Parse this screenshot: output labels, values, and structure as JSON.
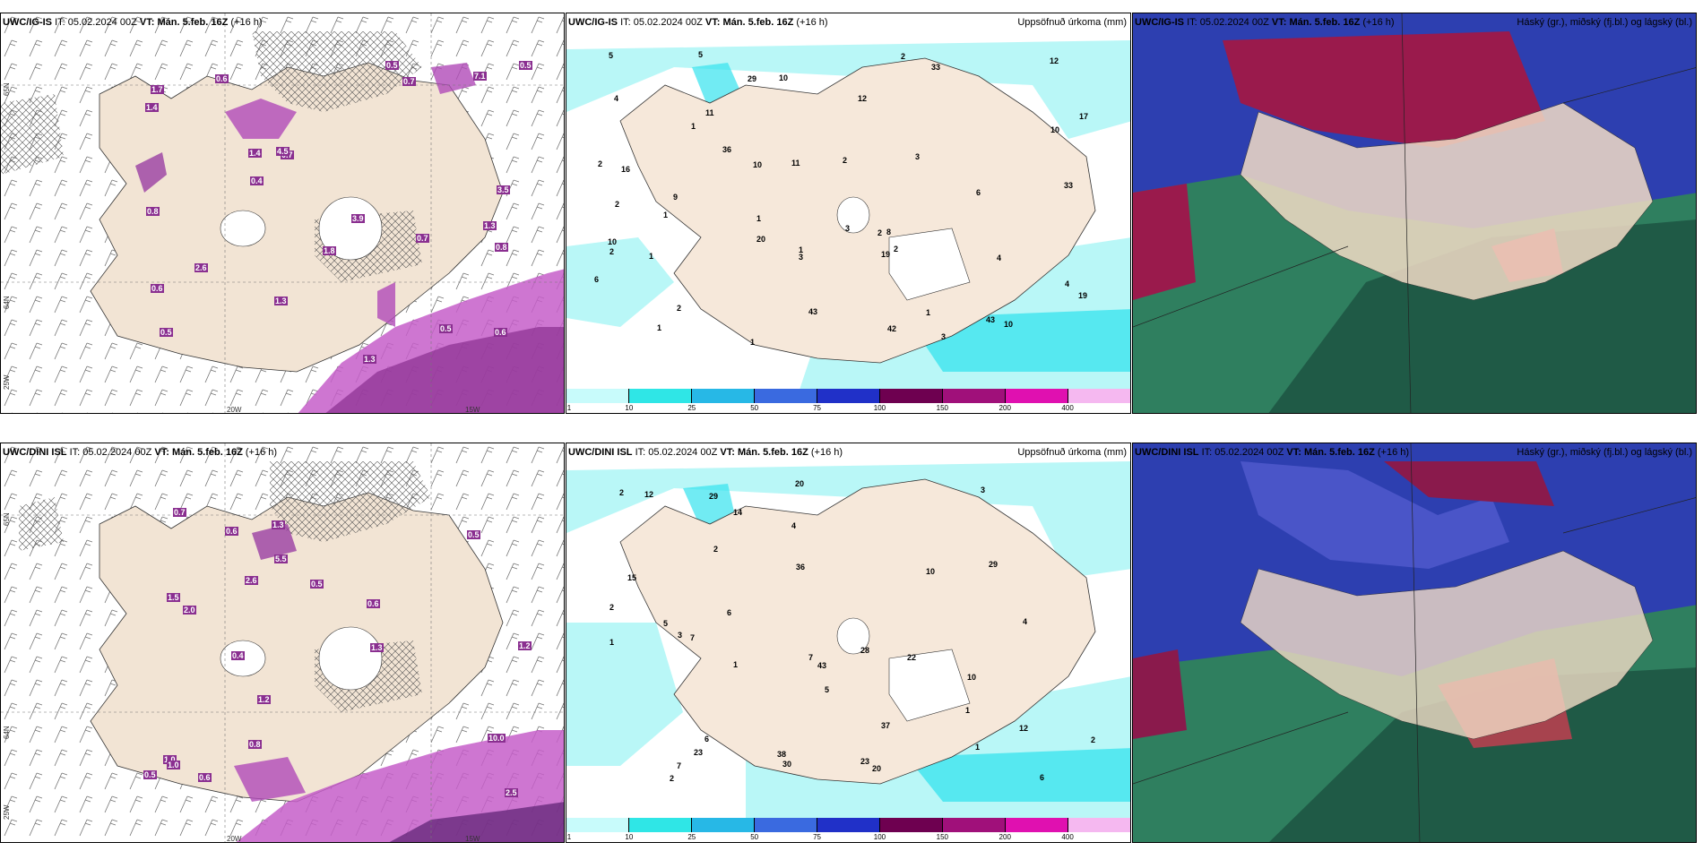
{
  "panels": [
    {
      "id": "top-left",
      "model": "UWC/IG-IS",
      "it_label": "IT:",
      "it_value": "05.02.2024 00Z",
      "vt_label": "VT:",
      "vt_value": "Mán. 5.feb. 16Z",
      "lead": "(+16 h)",
      "right_title": "",
      "coords": [
        "20W",
        "15W",
        "65N",
        "64N",
        "25W"
      ],
      "values": [
        "0.7",
        "1.3",
        "0.5",
        "0.6",
        "0.7",
        "0.5",
        "0.6",
        "0.7",
        "1.4",
        "1.3",
        "1.4",
        "0.8",
        "1.7",
        "0.6",
        "1.3",
        "3.5",
        "1.8",
        "3.9",
        "4.5",
        "2.6",
        "0.5",
        "7.1",
        "0.4",
        "0.8",
        "0.5"
      ]
    },
    {
      "id": "top-middle",
      "model": "UWC/IG-IS",
      "it_label": "IT:",
      "it_value": "05.02.2024 00Z",
      "vt_label": "VT:",
      "vt_value": "Mán. 5.feb. 16Z",
      "lead": "(+16 h)",
      "right_title": "Uppsöfnuð úrkoma (mm)",
      "values": [
        "2",
        "16",
        "12",
        "19",
        "1",
        "11",
        "6",
        "8",
        "10",
        "2",
        "2",
        "2",
        "1",
        "1",
        "4",
        "4",
        "3",
        "2",
        "1",
        "1",
        "10",
        "2",
        "3",
        "1",
        "5",
        "2",
        "1",
        "2",
        "1",
        "19",
        "33",
        "20",
        "10",
        "4",
        "3",
        "5",
        "3",
        "6",
        "10",
        "11",
        "9",
        "12",
        "17",
        "29",
        "33",
        "36",
        "43",
        "42",
        "43",
        "10"
      ]
    },
    {
      "id": "top-right",
      "model": "UWC/IG-IS",
      "it_label": "IT:",
      "it_value": "05.02.2024 00Z",
      "vt_label": "VT:",
      "vt_value": "Mán. 5.feb. 16Z",
      "lead": "(+16 h)",
      "right_title": "Háský (gr.), miðský (fj.bl.) og lágský (bl.)"
    },
    {
      "id": "bottom-left",
      "model": "UWC/DINI ISL",
      "it_label": "IT:",
      "it_value": "05.02.2024 00Z",
      "vt_label": "VT:",
      "vt_value": "Mán. 5.feb. 16Z",
      "lead": "(+16 h)",
      "right_title": "",
      "coords": [
        "20W",
        "15W",
        "65N",
        "64N",
        "25W"
      ],
      "values": [
        "0.8",
        "1.3",
        "0.5",
        "0.6",
        "0.7",
        "0.6",
        "0.5",
        "1.2",
        "0.4",
        "0.6",
        "2.6",
        "0.5",
        "1.0",
        "5.5",
        "1.3",
        "1.2",
        "10.0",
        "2.5",
        "1.5",
        "2.0",
        "1.0"
      ]
    },
    {
      "id": "bottom-middle",
      "model": "UWC/DINI ISL",
      "it_label": "IT:",
      "it_value": "05.02.2024 00Z",
      "vt_label": "VT:",
      "vt_value": "Mán. 5.feb. 16Z",
      "lead": "(+16 h)",
      "right_title": "Uppsöfnuð úrkoma (mm)",
      "values": [
        "23",
        "20",
        "6",
        "28",
        "15",
        "6",
        "10",
        "2",
        "1",
        "3",
        "20",
        "3",
        "5",
        "6",
        "2",
        "2",
        "1",
        "4",
        "2",
        "7",
        "7",
        "10",
        "22",
        "1",
        "2",
        "1",
        "7",
        "4",
        "12",
        "23",
        "12",
        "14",
        "36",
        "29",
        "38",
        "30",
        "37",
        "43",
        "29",
        "5"
      ]
    },
    {
      "id": "bottom-right",
      "model": "UWC/DINI ISL",
      "it_label": "IT:",
      "it_value": "05.02.2024 00Z",
      "vt_label": "VT:",
      "vt_value": "Mán. 5.feb. 16Z",
      "lead": "(+16 h)",
      "right_title": "Háský (gr.), miðský (fj.bl.) og lágský (bl.)"
    }
  ],
  "precip_legend": {
    "ticks": [
      "1",
      "10",
      "25",
      "50",
      "75",
      "100",
      "150",
      "200",
      "400"
    ],
    "colors": [
      "#c8fbfb",
      "#2fe6e6",
      "#27b8e6",
      "#3a6ae0",
      "#2030c8",
      "#6e0050",
      "#a0107a",
      "#e010b0",
      "#f5b8f0"
    ]
  },
  "colors": {
    "land": "#f6e8da",
    "sea": "#ffffff",
    "precip_light": "#b9f7f7",
    "precip_cyan": "#35e3ee",
    "precip_magenta": "#c040c8",
    "high_cloud": "#3a9a70",
    "mid_cloud": "#3030b8",
    "low_cloud": "#a01040"
  }
}
